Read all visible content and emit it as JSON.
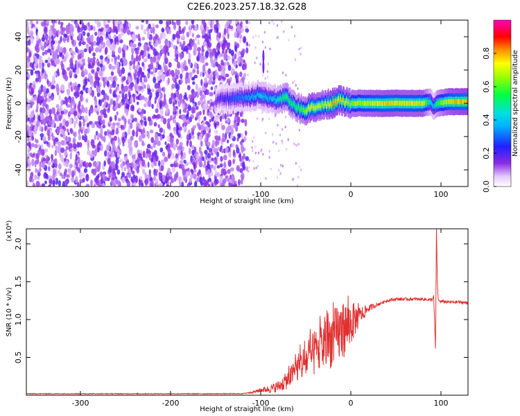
{
  "title": "C2E6.2023.257.18.32.G28",
  "chart_data": [
    {
      "type": "heatmap",
      "xlabel": "Height of straight line (km)",
      "ylabel": "Frequency (Hz)",
      "xlim": [
        -360,
        130
      ],
      "ylim": [
        -50,
        50
      ],
      "xticks": [
        -300,
        -200,
        -100,
        0,
        100
      ],
      "xticklabels": [
        "-300",
        "-200",
        "-100",
        "0",
        "100"
      ],
      "yticks": [
        -40,
        -20,
        0,
        20,
        40
      ],
      "yticklabels": [
        "-40",
        "-20",
        "0",
        "20",
        "40"
      ],
      "colorbar": {
        "label": "Normalized spectral amplitude",
        "range": [
          0,
          1
        ],
        "ticks": [
          0.0,
          0.2,
          0.4,
          0.6,
          0.8
        ],
        "ticklabels": [
          "0.0",
          "0.2",
          "0.4",
          "0.6",
          "0.8"
        ],
        "colormap": "rainbow (white-purple-blue-cyan-green-yellow-red-magenta)"
      },
      "ridge": {
        "x": [
          -150,
          -130,
          -110,
          -100,
          -90,
          -80,
          -72,
          -65,
          -58,
          -52,
          -45,
          -38,
          -30,
          -20,
          -12,
          -5,
          0,
          20,
          40,
          60,
          80,
          88,
          92,
          96,
          110,
          130
        ],
        "frequency": [
          2,
          3,
          4,
          5,
          3,
          2,
          4,
          -1,
          -3,
          -4,
          -3,
          -2,
          -1,
          0,
          2,
          1,
          0,
          0,
          0,
          0,
          0,
          1,
          -2,
          0,
          1,
          1
        ],
        "amplitude": [
          0.2,
          0.3,
          0.4,
          0.45,
          0.4,
          0.5,
          0.6,
          0.55,
          0.6,
          0.65,
          0.8,
          0.75,
          0.7,
          0.85,
          0.8,
          0.75,
          0.7,
          0.75,
          0.8,
          0.78,
          0.78,
          0.5,
          0.4,
          0.6,
          0.8,
          0.85
        ]
      },
      "noise_region_x": [
        -360,
        -115
      ],
      "grid": false
    },
    {
      "type": "line",
      "xlabel": "Height of straight line (km)",
      "ylabel": "SNR (10 * v/v)",
      "yscale_label": "(x10⁴)",
      "xlim": [
        -360,
        130
      ],
      "ylim": [
        0,
        2.2
      ],
      "xticks": [
        -300,
        -200,
        -100,
        0,
        100
      ],
      "xticklabels": [
        "-300",
        "-200",
        "-100",
        "0",
        "100"
      ],
      "yticks": [
        0.5,
        1.0,
        1.5,
        2.0
      ],
      "yticklabels": [
        "0.5",
        "1.0",
        "1.5",
        "2.0"
      ],
      "color": "#e03030",
      "series": [
        {
          "x": [
            -360,
            -300,
            -200,
            -120,
            -105,
            -100,
            -90,
            -80,
            -70,
            -60,
            -50,
            -40,
            -30,
            -20,
            -10,
            -5,
            0,
            10,
            20,
            30,
            40,
            50,
            60,
            70,
            80,
            88,
            92,
            94,
            95,
            96,
            97,
            100,
            110,
            120,
            130
          ],
          "y": [
            0.02,
            0.02,
            0.02,
            0.02,
            0.05,
            0.07,
            0.08,
            0.12,
            0.2,
            0.35,
            0.45,
            0.55,
            0.65,
            0.75,
            0.85,
            0.9,
            0.95,
            1.05,
            1.15,
            1.2,
            1.25,
            1.27,
            1.27,
            1.27,
            1.27,
            1.26,
            1.28,
            0.6,
            2.2,
            1.5,
            1.25,
            1.24,
            1.23,
            1.23,
            1.22
          ],
          "noise_amplitude": [
            0.005,
            0.005,
            0.005,
            0.005,
            0.02,
            0.03,
            0.05,
            0.08,
            0.12,
            0.18,
            0.25,
            0.3,
            0.35,
            0.38,
            0.4,
            0.35,
            0.3,
            0.12,
            0.05,
            0.02,
            0.02,
            0.02,
            0.02,
            0.02,
            0.02,
            0.02,
            0.05,
            0,
            0,
            0,
            0.02,
            0.02,
            0.02,
            0.02,
            0.02
          ]
        }
      ],
      "grid": false
    }
  ]
}
